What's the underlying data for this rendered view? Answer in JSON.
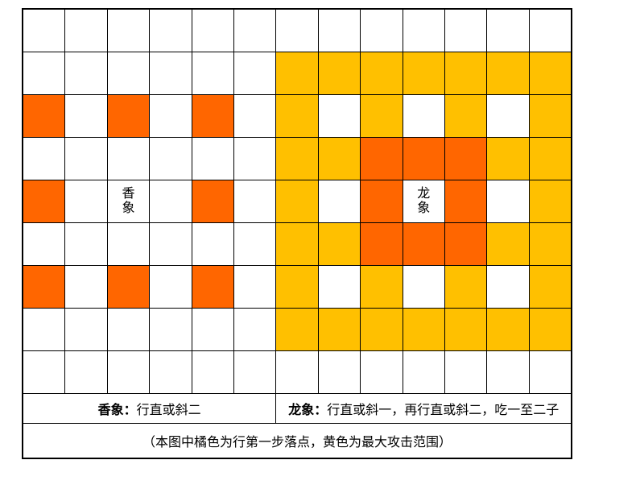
{
  "board": {
    "columns": 13,
    "rows": 9,
    "cell_colors": {
      ".": "#FFFFFF",
      "o": "#FF6600",
      "y": "#FFC000"
    },
    "cells": [
      ".............",
      "......yyyyyyy",
      "o.o.o.y.y.y.y",
      "......yyoooyy",
      "o.X.o.y.oLo.y",
      "......yyoooyy",
      "o.o.o.y.y.y.y",
      "......yyyyyyy",
      "............."
    ],
    "pieces": [
      {
        "symbol": "X",
        "name": "香象",
        "column": 3,
        "row": 5
      },
      {
        "symbol": "L",
        "name": "龙象",
        "column": 10,
        "row": 5
      }
    ]
  },
  "captions": {
    "xiang_label": "香象：",
    "xiang_desc": "行直或斜二",
    "long_label": "龙象：",
    "long_desc": "行直或斜一，再行直或斜二，吃一至二子",
    "footnote": "（本图中橘色为行第一步落点，黄色为最大攻击范围）"
  },
  "colors": {
    "first_step_orange": "#FF6600",
    "attack_range_yellow": "#FFC000",
    "grid_line": "#000000",
    "background": "#FFFFFF"
  }
}
